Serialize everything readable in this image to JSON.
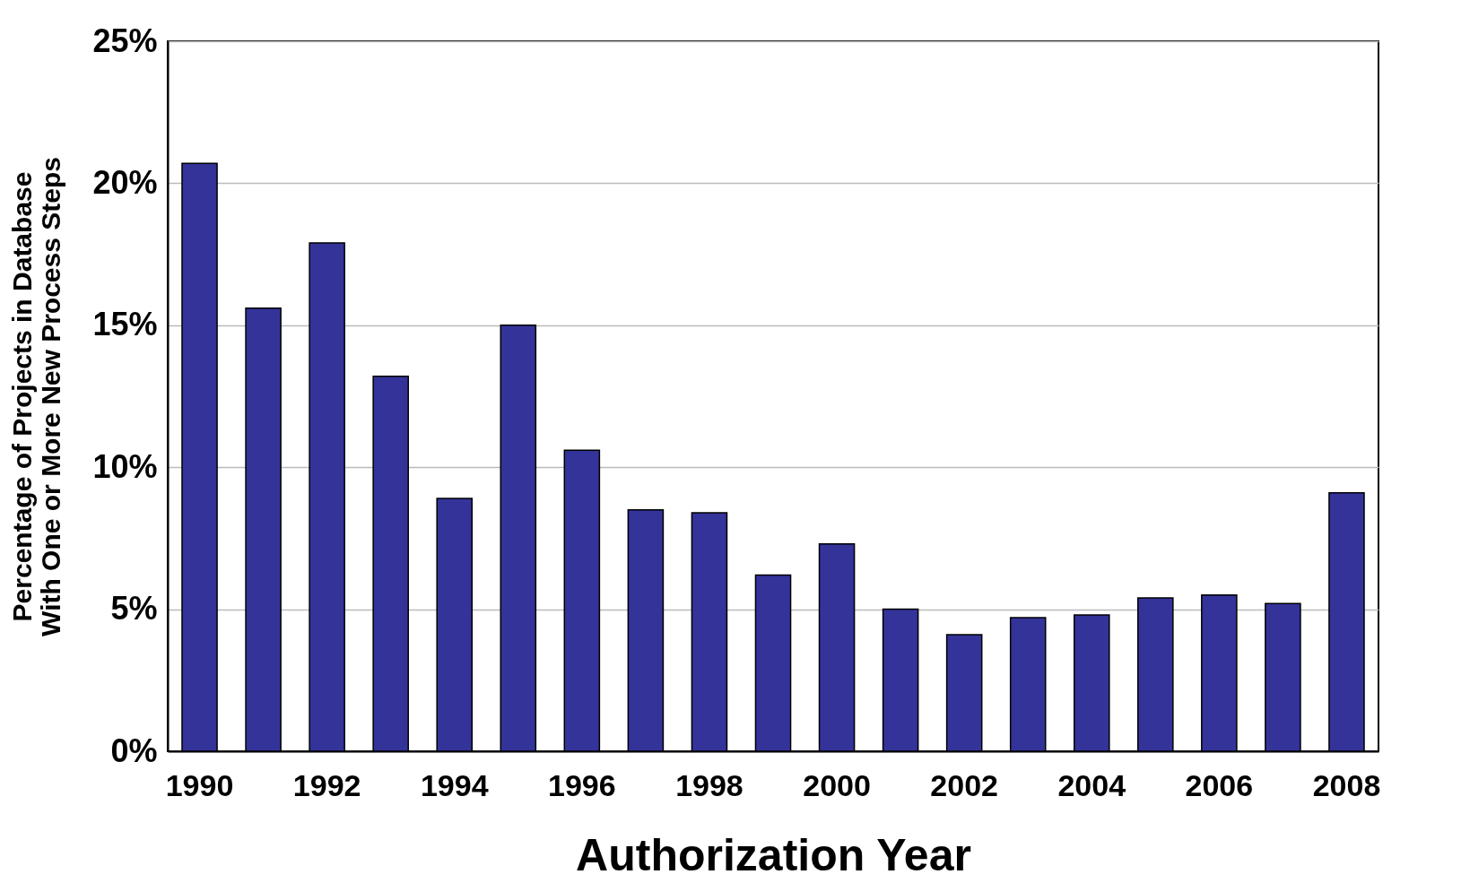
{
  "chart_data": {
    "type": "bar",
    "xlabel": "Authorization Year",
    "ylabel": "Percentage of Projects in Database With One or More New Process Steps",
    "categories": [
      "1990",
      null,
      "1992",
      null,
      "1994",
      null,
      "1996",
      null,
      "1998",
      null,
      "2000",
      null,
      "2002",
      null,
      "2004",
      null,
      "2006",
      null,
      "2008"
    ],
    "values": [
      20.7,
      15.6,
      17.9,
      13.2,
      8.9,
      15.0,
      10.6,
      8.5,
      8.4,
      6.2,
      7.3,
      5.0,
      4.1,
      4.7,
      4.8,
      5.4,
      5.5,
      5.2,
      9.1
    ],
    "color": "#333399",
    "ylim": [
      0,
      25
    ],
    "yticks": [
      {
        "value": 0,
        "label": "0%"
      },
      {
        "value": 5,
        "label": "5%"
      },
      {
        "value": 10,
        "label": "10%"
      },
      {
        "value": 15,
        "label": "15%"
      },
      {
        "value": 20,
        "label": "20%"
      },
      {
        "value": 25,
        "label": "25%"
      }
    ],
    "grid": "y"
  }
}
